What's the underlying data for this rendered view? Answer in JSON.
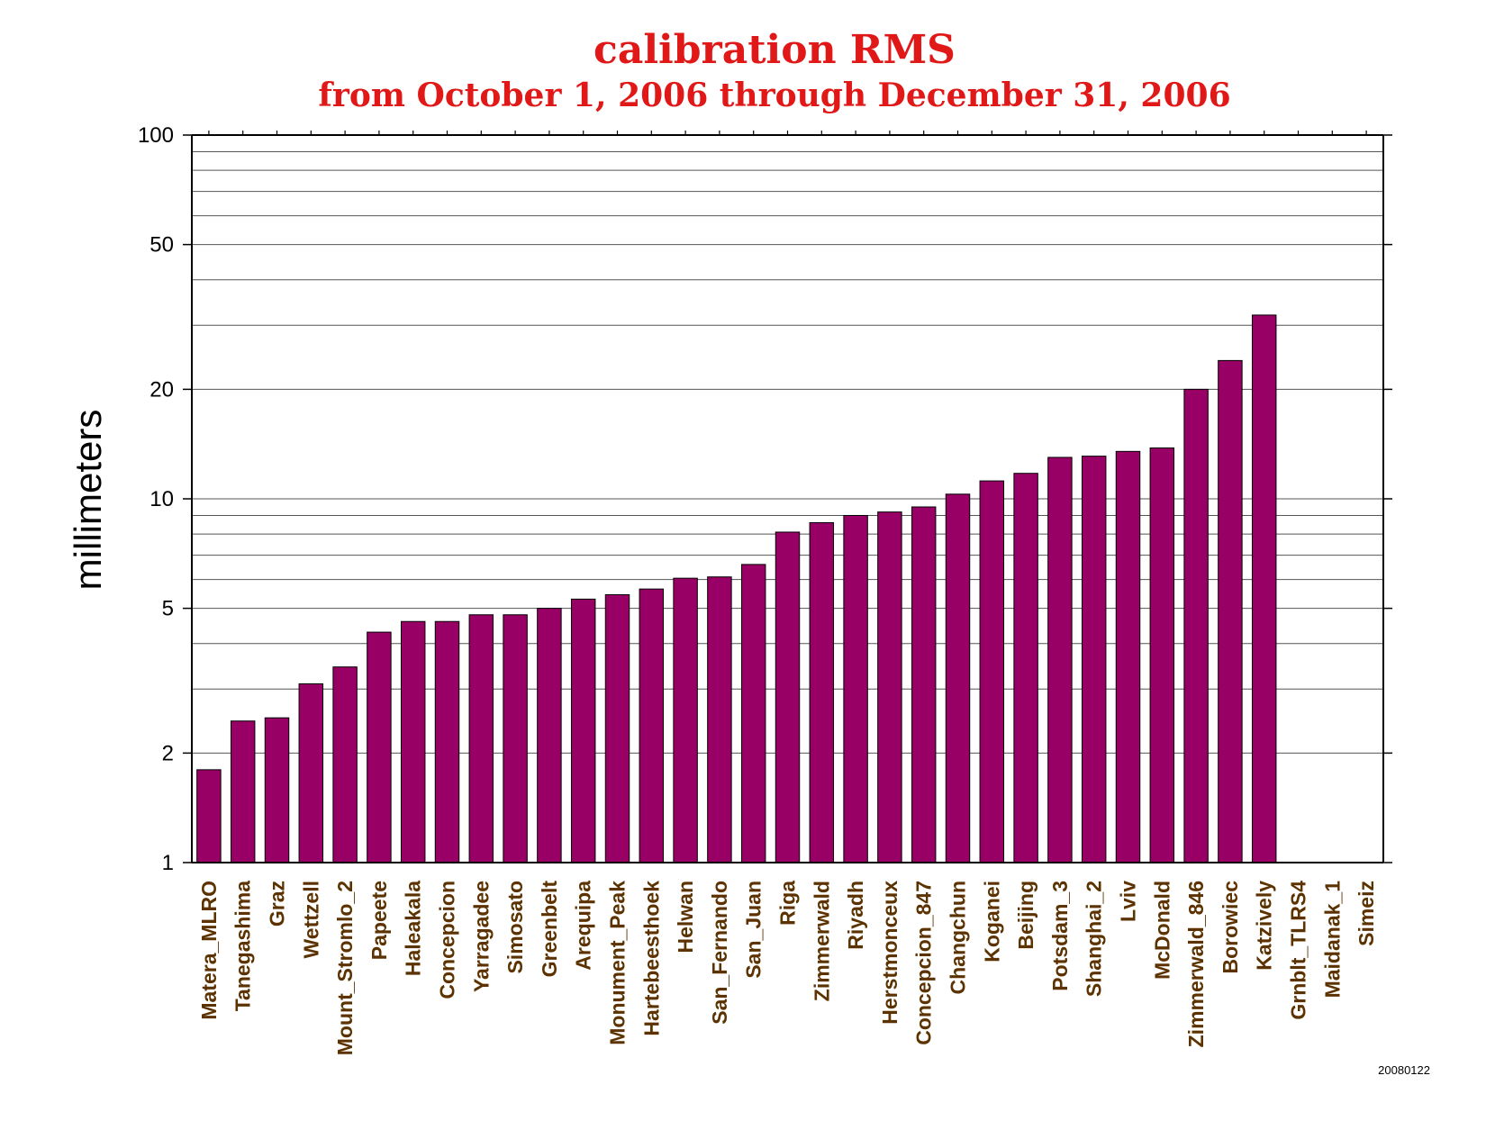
{
  "chart_data": {
    "type": "bar",
    "title": "calibration RMS",
    "subtitle": "from October 1, 2006 through December 31, 2006",
    "ylabel": "millimeters",
    "xlabel": "",
    "yscale": "log",
    "ylim": [
      1,
      100
    ],
    "yticks": [
      1,
      2,
      5,
      10,
      20,
      50,
      100
    ],
    "ytick_labels": [
      "1",
      "2",
      "5",
      "10",
      "20",
      "50",
      "100"
    ],
    "grid": "horizontal",
    "categories": [
      "Matera_MLRO",
      "Tanegashima",
      "Graz",
      "Wettzell",
      "Mount_Stromlo_2",
      "Papeete",
      "Haleakala",
      "Concepcion",
      "Yarragadee",
      "Simosato",
      "Greenbelt",
      "Arequipa",
      "Monument_Peak",
      "Hartebeesthoek",
      "Helwan",
      "San_Fernando",
      "San_Juan",
      "Riga",
      "Zimmerwald",
      "Riyadh",
      "Herstmonceux",
      "Concepcion_847",
      "Changchun",
      "Koganei",
      "Beijing",
      "Potsdam_3",
      "Shanghai_2",
      "Lviv",
      "McDonald",
      "Zimmerwald_846",
      "Borowiec",
      "Katzively",
      "Grnblt_TLRS4",
      "Maidanak_1",
      "Simeiz"
    ],
    "values": [
      1.8,
      2.45,
      2.5,
      3.1,
      3.45,
      4.3,
      4.6,
      4.6,
      4.8,
      4.8,
      5.0,
      5.3,
      5.45,
      5.65,
      6.05,
      6.1,
      6.6,
      8.1,
      8.6,
      9.0,
      9.2,
      9.5,
      10.3,
      11.2,
      11.75,
      13.0,
      13.1,
      13.5,
      13.8,
      20.0,
      24.0,
      32.0,
      null,
      null,
      null
    ],
    "bar_color": "#990066",
    "label_color": "#5c3300"
  },
  "footer": {
    "stamp": "20080122"
  }
}
